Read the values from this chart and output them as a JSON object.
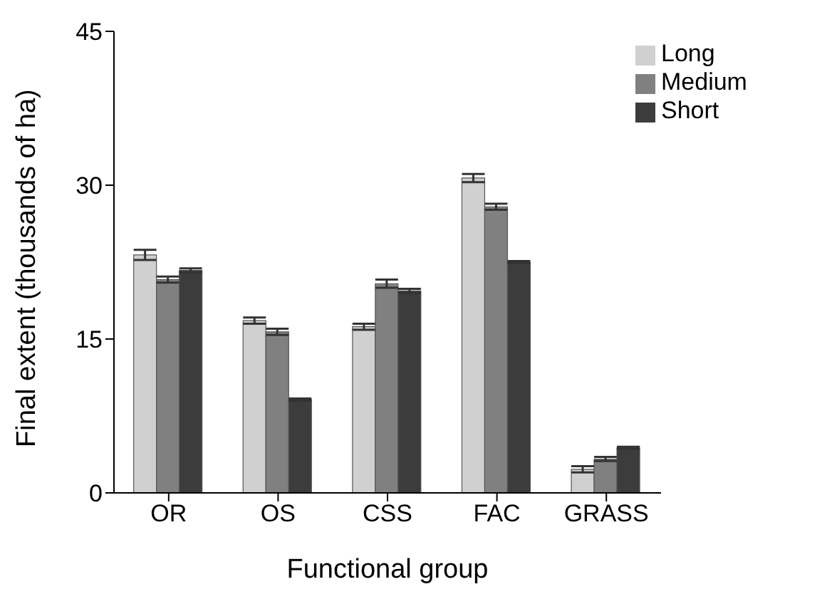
{
  "chart_data": {
    "type": "bar",
    "xlabel": "Functional group",
    "ylabel": "Final extent (thousands of ha)",
    "categories": [
      "OR",
      "OS",
      "CSS",
      "FAC",
      "GRASS"
    ],
    "series": [
      {
        "name": "Long",
        "color": "#d0d0d0",
        "values": [
          23.2,
          16.8,
          16.2,
          30.7,
          2.3
        ],
        "errors": [
          0.5,
          0.3,
          0.3,
          0.4,
          0.3
        ]
      },
      {
        "name": "Medium",
        "color": "#808080",
        "values": [
          20.8,
          15.7,
          20.4,
          27.9,
          3.3
        ],
        "errors": [
          0.3,
          0.3,
          0.4,
          0.3,
          0.2
        ]
      },
      {
        "name": "Short",
        "color": "#3c3c3c",
        "values": [
          21.7,
          9.1,
          19.7,
          22.5,
          4.4
        ],
        "errors": [
          0.2,
          0.1,
          0.2,
          0.1,
          0.1
        ]
      }
    ],
    "ylim": [
      0,
      45
    ],
    "yticks": [
      0,
      15,
      30,
      45
    ],
    "grid": false,
    "legend": "top right"
  }
}
